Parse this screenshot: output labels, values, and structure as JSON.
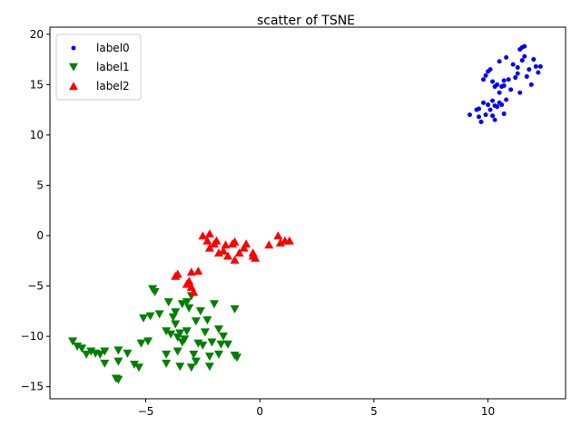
{
  "chart_data": {
    "type": "scatter",
    "title": "scatter of TSNE",
    "xlabel": "",
    "ylabel": "",
    "xlim": [
      -9.2,
      13.4
    ],
    "ylim": [
      -16.2,
      20.7
    ],
    "xticks": [
      -5,
      0,
      5,
      10
    ],
    "yticks": [
      -15,
      -10,
      -5,
      0,
      5,
      10,
      15,
      20
    ],
    "grid": false,
    "legend_position": "top-left",
    "series": [
      {
        "name": "label0",
        "marker": "circle",
        "color": "#0000ff",
        "points": [
          [
            9.2,
            12.0
          ],
          [
            9.5,
            12.5
          ],
          [
            9.6,
            11.8
          ],
          [
            9.7,
            11.3
          ],
          [
            9.6,
            12.6
          ],
          [
            9.8,
            13.2
          ],
          [
            9.9,
            12.0
          ],
          [
            10.0,
            13.0
          ],
          [
            10.1,
            12.5
          ],
          [
            10.2,
            11.9
          ],
          [
            10.3,
            11.5
          ],
          [
            10.4,
            12.8
          ],
          [
            10.5,
            13.2
          ],
          [
            10.6,
            13.0
          ],
          [
            10.7,
            12.1
          ],
          [
            10.8,
            13.5
          ],
          [
            10.2,
            13.4
          ],
          [
            9.8,
            15.5
          ],
          [
            9.9,
            15.9
          ],
          [
            10.0,
            16.3
          ],
          [
            10.1,
            16.5
          ],
          [
            10.2,
            15.3
          ],
          [
            10.3,
            14.8
          ],
          [
            10.4,
            15.0
          ],
          [
            10.5,
            14.2
          ],
          [
            10.6,
            14.8
          ],
          [
            10.7,
            14.9
          ],
          [
            10.8,
            17.7
          ],
          [
            10.9,
            15.5
          ],
          [
            11.0,
            14.5
          ],
          [
            11.2,
            15.7
          ],
          [
            11.3,
            16.7
          ],
          [
            11.4,
            18.5
          ],
          [
            11.5,
            18.7
          ],
          [
            11.5,
            17.4
          ],
          [
            11.6,
            18.8
          ],
          [
            11.6,
            17.8
          ],
          [
            11.8,
            16.5
          ],
          [
            11.9,
            15.0
          ],
          [
            12.0,
            17.5
          ],
          [
            12.1,
            16.8
          ],
          [
            12.2,
            16.2
          ],
          [
            12.3,
            16.8
          ],
          [
            11.4,
            14.2
          ],
          [
            10.5,
            17.3
          ],
          [
            11.3,
            16.1
          ],
          [
            10.3,
            12.9
          ],
          [
            11.1,
            17.0
          ],
          [
            10.7,
            15.4
          ],
          [
            11.7,
            15.8
          ]
        ]
      },
      {
        "name": "label1",
        "marker": "triangle-down",
        "color": "#008000",
        "points": [
          [
            -8.2,
            -10.5
          ],
          [
            -8.0,
            -11.0
          ],
          [
            -7.8,
            -11.2
          ],
          [
            -7.6,
            -11.8
          ],
          [
            -7.4,
            -11.5
          ],
          [
            -7.2,
            -11.7
          ],
          [
            -7.0,
            -11.8
          ],
          [
            -6.8,
            -12.7
          ],
          [
            -6.8,
            -11.5
          ],
          [
            -6.3,
            -14.2
          ],
          [
            -6.2,
            -14.3
          ],
          [
            -6.2,
            -12.5
          ],
          [
            -6.2,
            -11.4
          ],
          [
            -5.8,
            -11.7
          ],
          [
            -5.5,
            -12.8
          ],
          [
            -5.3,
            -13.1
          ],
          [
            -5.2,
            -10.7
          ],
          [
            -5.1,
            -8.2
          ],
          [
            -4.9,
            -10.5
          ],
          [
            -4.8,
            -8.0
          ],
          [
            -4.7,
            -5.3
          ],
          [
            -4.6,
            -5.6
          ],
          [
            -4.4,
            -7.8
          ],
          [
            -4.1,
            -9.5
          ],
          [
            -4.1,
            -11.8
          ],
          [
            -4.1,
            -12.7
          ],
          [
            -4.0,
            -6.6
          ],
          [
            -3.9,
            -9.8
          ],
          [
            -3.8,
            -8.1
          ],
          [
            -3.7,
            -7.6
          ],
          [
            -3.7,
            -8.8
          ],
          [
            -3.6,
            -10.1
          ],
          [
            -3.6,
            -11.5
          ],
          [
            -3.5,
            -9.7
          ],
          [
            -3.5,
            -13.0
          ],
          [
            -3.4,
            -6.8
          ],
          [
            -3.3,
            -10.3
          ],
          [
            -3.2,
            -9.5
          ],
          [
            -3.1,
            -7.2
          ],
          [
            -3.0,
            -13.1
          ],
          [
            -3.0,
            -6.0
          ],
          [
            -2.9,
            -11.8
          ],
          [
            -2.8,
            -12.5
          ],
          [
            -2.8,
            -8.5
          ],
          [
            -2.7,
            -10.7
          ],
          [
            -2.6,
            -7.5
          ],
          [
            -2.5,
            -10.9
          ],
          [
            -2.4,
            -9.6
          ],
          [
            -2.3,
            -8.4
          ],
          [
            -2.2,
            -13.0
          ],
          [
            -2.2,
            -12.0
          ],
          [
            -2.1,
            -10.6
          ],
          [
            -2.0,
            -6.8
          ],
          [
            -1.8,
            -11.8
          ],
          [
            -1.8,
            -9.3
          ],
          [
            -1.7,
            -10.8
          ],
          [
            -1.6,
            -10.0
          ],
          [
            -1.4,
            -10.8
          ],
          [
            -1.1,
            -7.3
          ],
          [
            -1.1,
            -11.9
          ],
          [
            -1.0,
            -12.1
          ],
          [
            -3.4,
            -10.6
          ],
          [
            -3.2,
            -6.6
          ]
        ]
      },
      {
        "name": "label2",
        "marker": "triangle-up",
        "color": "#ff0000",
        "points": [
          [
            -3.7,
            -4.0
          ],
          [
            -3.6,
            -3.8
          ],
          [
            -3.2,
            -4.8
          ],
          [
            -3.1,
            -4.5
          ],
          [
            -3.0,
            -5.1
          ],
          [
            -3.0,
            -3.6
          ],
          [
            -2.9,
            -5.6
          ],
          [
            -2.7,
            -3.5
          ],
          [
            -2.5,
            0.0
          ],
          [
            -2.3,
            -0.5
          ],
          [
            -2.2,
            -1.2
          ],
          [
            -2.2,
            0.2
          ],
          [
            -2.0,
            -0.8
          ],
          [
            -1.9,
            -0.5
          ],
          [
            -1.8,
            -1.7
          ],
          [
            -1.6,
            -1.5
          ],
          [
            -1.5,
            -0.9
          ],
          [
            -1.4,
            -2.0
          ],
          [
            -1.2,
            -0.8
          ],
          [
            -1.1,
            -0.6
          ],
          [
            -1.1,
            -2.4
          ],
          [
            -0.9,
            -1.7
          ],
          [
            -0.7,
            -1.2
          ],
          [
            -0.6,
            -0.8
          ],
          [
            -0.3,
            -1.7
          ],
          [
            -0.2,
            -2.2
          ],
          [
            -0.3,
            -2.0
          ],
          [
            0.4,
            -0.9
          ],
          [
            0.8,
            0.0
          ],
          [
            0.9,
            -0.7
          ],
          [
            1.1,
            -0.5
          ],
          [
            1.3,
            -0.5
          ]
        ]
      }
    ]
  }
}
